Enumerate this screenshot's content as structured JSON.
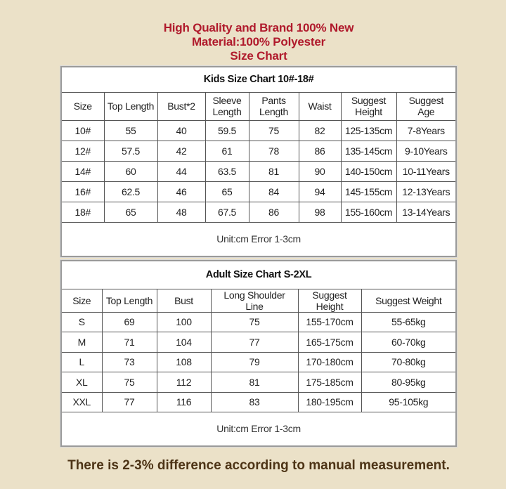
{
  "header": {
    "line1": "High Quality and Brand 100% New",
    "line2": "Material:100% Polyester",
    "line3": "Size Chart"
  },
  "colors": {
    "header_text": "#b01a2c",
    "footer_text": "#4d3416",
    "background": "#ebe1c8"
  },
  "kids_table": {
    "title": "Kids Size Chart 10#-18#",
    "columns": [
      "Size",
      "Top Length",
      "Bust*2",
      "Sleeve Length",
      "Pants Length",
      "Waist",
      "Suggest Height",
      "Suggest Age"
    ],
    "rows": [
      [
        "10#",
        "55",
        "40",
        "59.5",
        "75",
        "82",
        "125-135cm",
        "7-8Years"
      ],
      [
        "12#",
        "57.5",
        "42",
        "61",
        "78",
        "86",
        "135-145cm",
        "9-10Years"
      ],
      [
        "14#",
        "60",
        "44",
        "63.5",
        "81",
        "90",
        "140-150cm",
        "10-11Years"
      ],
      [
        "16#",
        "62.5",
        "46",
        "65",
        "84",
        "94",
        "145-155cm",
        "12-13Years"
      ],
      [
        "18#",
        "65",
        "48",
        "67.5",
        "86",
        "98",
        "155-160cm",
        "13-14Years"
      ]
    ],
    "unit_note": "Unit:cm Error 1-3cm"
  },
  "adult_table": {
    "title": "Adult Size Chart S-2XL",
    "columns": [
      "Size",
      "Top Length",
      "Bust",
      "Long Shoulder Line",
      "Suggest Height",
      "Suggest Weight"
    ],
    "rows": [
      [
        "S",
        "69",
        "100",
        "75",
        "155-170cm",
        "55-65kg"
      ],
      [
        "M",
        "71",
        "104",
        "77",
        "165-175cm",
        "60-70kg"
      ],
      [
        "L",
        "73",
        "108",
        "79",
        "170-180cm",
        "70-80kg"
      ],
      [
        "XL",
        "75",
        "112",
        "81",
        "175-185cm",
        "80-95kg"
      ],
      [
        "XXL",
        "77",
        "116",
        "83",
        "180-195cm",
        "95-105kg"
      ]
    ],
    "unit_note": "Unit:cm Error 1-3cm"
  },
  "footer": {
    "note": "There is 2-3% difference according to manual measurement."
  }
}
